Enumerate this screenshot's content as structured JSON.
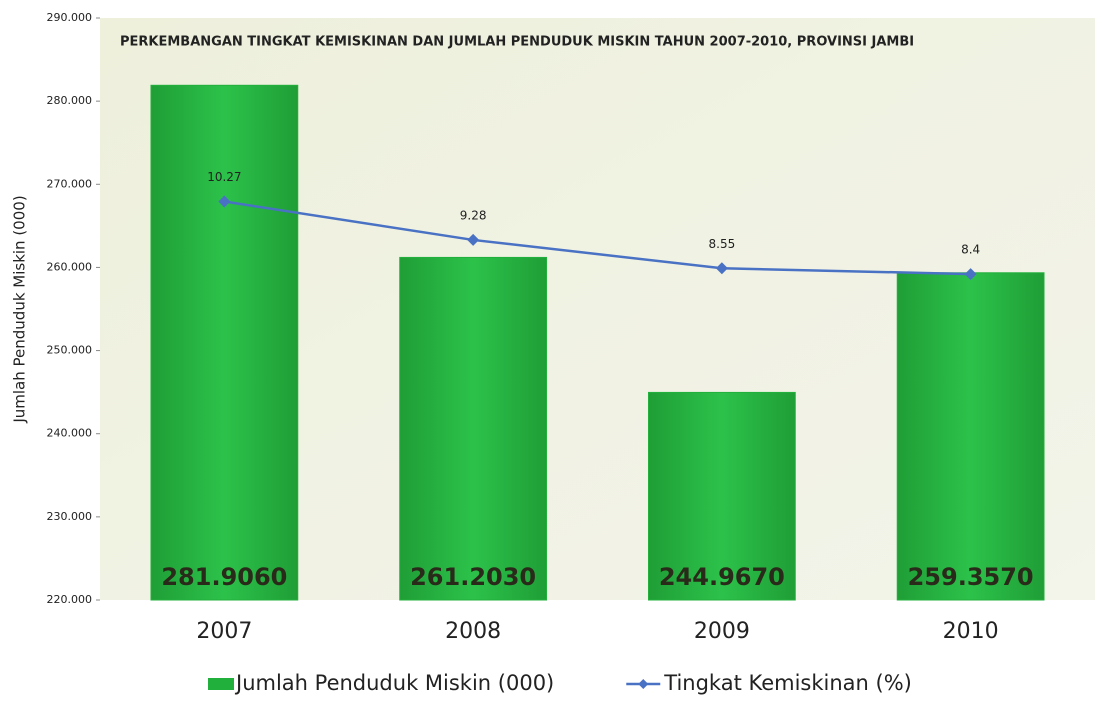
{
  "chart_data": {
    "type": "bar",
    "title": "PERKEMBANGAN TINGKAT KEMISKINAN DAN JUMLAH PENDUDUK MISKIN TAHUN 2007-2010, PROVINSI JAMBI",
    "ylabel": "Jumlah Penduduk Miskin (000)",
    "categories": [
      "2007",
      "2008",
      "2009",
      "2010"
    ],
    "series": [
      {
        "name": "Jumlah Penduduk Miskin (000)",
        "type": "bar",
        "color": "#22b03c",
        "values": [
          281.906,
          261.203,
          244.967,
          259.357
        ],
        "value_labels": [
          "281.9060",
          "261.2030",
          "244.9670",
          "259.3570"
        ]
      },
      {
        "name": "Tingkat Kemiskinan (%)",
        "type": "line",
        "axis": "y2",
        "color": "#4a72c4",
        "values": [
          10.27,
          9.28,
          8.55,
          8.4
        ]
      }
    ],
    "ylim": [
      220,
      290
    ],
    "yticks": [
      {
        "value": 220,
        "label": "220.000"
      },
      {
        "value": 230,
        "label": "230.000"
      },
      {
        "value": 240,
        "label": "240.000"
      },
      {
        "value": 250,
        "label": "250.000"
      },
      {
        "value": 260,
        "label": "260.000"
      },
      {
        "value": 270,
        "label": "270.000"
      },
      {
        "value": 280,
        "label": "280.000"
      },
      {
        "value": 290,
        "label": "290.000"
      }
    ],
    "y2lim": [
      0,
      15
    ],
    "legend": "bottom"
  }
}
